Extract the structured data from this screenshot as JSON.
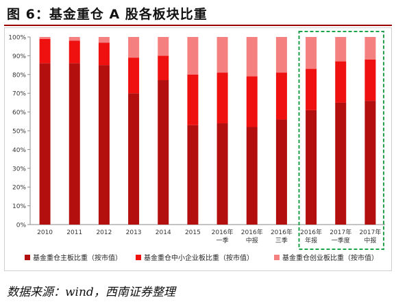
{
  "title": "图 6：基金重仓 A 股各板块比重",
  "source": "数据来源：wind，西南证券整理",
  "chart_data": {
    "type": "bar",
    "stacked": true,
    "percent": true,
    "categories": [
      [
        "2010"
      ],
      [
        "2011"
      ],
      [
        "2012"
      ],
      [
        "2013"
      ],
      [
        "2014"
      ],
      [
        "2015"
      ],
      [
        "2016年",
        "一季"
      ],
      [
        "2016年",
        "中报"
      ],
      [
        "2016年",
        "三季"
      ],
      [
        "2016年",
        "年报"
      ],
      [
        "2017年",
        "一季度"
      ],
      [
        "2017年",
        "中报"
      ]
    ],
    "series": [
      {
        "name": "基金重仓主板比重（按市值）",
        "color": "#b30f0f",
        "values": [
          86,
          86,
          85,
          70,
          77,
          53,
          54,
          52,
          56,
          61,
          65,
          66
        ]
      },
      {
        "name": "基金重仓中小企业板比重（按市值）",
        "color": "#ef1010",
        "values": [
          13,
          12,
          12,
          19,
          13,
          27,
          27,
          27,
          25,
          22,
          22,
          22
        ]
      },
      {
        "name": "基金重仓创业板比重（按市值）",
        "color": "#f58080",
        "values": [
          1,
          2,
          3,
          11,
          10,
          20,
          19,
          21,
          19,
          17,
          13,
          12
        ]
      }
    ],
    "yticks": [
      "0%",
      "10%",
      "20%",
      "30%",
      "40%",
      "50%",
      "60%",
      "70%",
      "80%",
      "90%",
      "100%"
    ],
    "ylim": [
      0,
      100
    ],
    "highlight": {
      "from_index": 9,
      "to_index": 11,
      "color": "#1aa14a",
      "style": "dashed"
    },
    "legend_position": "bottom"
  }
}
